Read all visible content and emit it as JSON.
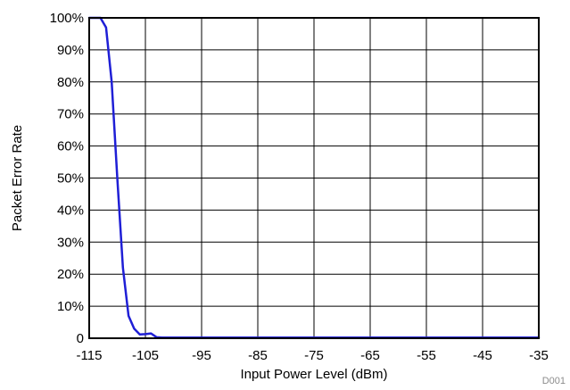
{
  "chart_data": {
    "type": "line",
    "title": "",
    "xlabel": "Input Power Level (dBm)",
    "ylabel": "Packet Error Rate",
    "xlim": [
      -115,
      -35
    ],
    "ylim": [
      0,
      100
    ],
    "x_ticks": [
      -115,
      -105,
      -95,
      -85,
      -75,
      -65,
      -55,
      -45,
      -35
    ],
    "y_ticks": [
      0,
      10,
      20,
      30,
      40,
      50,
      60,
      70,
      80,
      90,
      100
    ],
    "x_tick_labels": [
      "-115",
      "-105",
      "-95",
      "-85",
      "-75",
      "-65",
      "-55",
      "-45",
      "-35"
    ],
    "y_tick_labels": [
      "0",
      "10%",
      "20%",
      "30%",
      "40%",
      "50%",
      "60%",
      "70%",
      "80%",
      "90%",
      "100%"
    ],
    "grid": true,
    "legend": "none",
    "series": [
      {
        "color": "#1f1fd6",
        "x": [
          -115,
          -113,
          -112,
          -111,
          -110,
          -109,
          -108,
          -107,
          -106,
          -105,
          -104,
          -103,
          -102,
          -100,
          -95,
          -85,
          -75,
          -65,
          -55,
          -45,
          -35
        ],
        "y": [
          100,
          100,
          97,
          80,
          50,
          22,
          7,
          3,
          1.2,
          1.3,
          1.5,
          0.3,
          0.2,
          0.2,
          0.2,
          0.2,
          0.2,
          0.2,
          0.2,
          0.2,
          0.2
        ]
      }
    ]
  },
  "footer": {
    "code": "D001"
  }
}
